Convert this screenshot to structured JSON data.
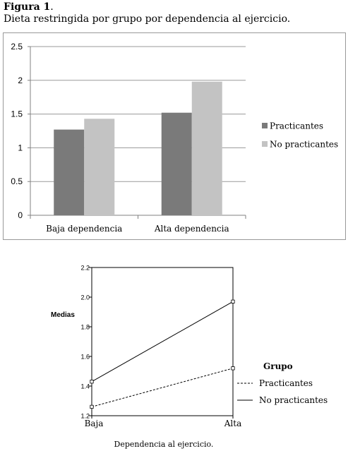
{
  "figure": {
    "label": "Figura 1",
    "caption": "Dieta restringida por grupo por dependencia al ejercicio."
  },
  "colors": {
    "practicantes_bar": "#7a7a7a",
    "no_practicantes_bar": "#c3c3c3",
    "frame": "#999999"
  },
  "chart_data": [
    {
      "type": "bar",
      "categories": [
        "Baja dependencia",
        "Alta dependencia"
      ],
      "series": [
        {
          "name": "Practicantes",
          "values": [
            1.27,
            1.52
          ]
        },
        {
          "name": "No practicantes",
          "values": [
            1.43,
            1.98
          ]
        }
      ],
      "ylim": [
        0,
        2.5
      ],
      "yticks": [
        "0",
        "0.5",
        "1",
        "1.5",
        "2",
        "2.5"
      ],
      "ytick_values": [
        0,
        0.5,
        1,
        1.5,
        2,
        2.5
      ],
      "grid": true,
      "legend": "right"
    },
    {
      "type": "line",
      "x": [
        "Baja",
        "Alta"
      ],
      "series": [
        {
          "name": "Practicantes",
          "values": [
            1.26,
            1.52
          ],
          "style": "dashed"
        },
        {
          "name": "No practicantes",
          "values": [
            1.43,
            1.97
          ],
          "style": "solid"
        }
      ],
      "xlabel": "Dependencia al ejercicio.",
      "ylabel": "Medias",
      "ylim": [
        1.2,
        2.2
      ],
      "yticks": [
        "1.2",
        "1.4",
        "1.6",
        "1.8",
        "2.0",
        "2.2"
      ],
      "ytick_values": [
        1.2,
        1.4,
        1.6,
        1.8,
        2.0,
        2.2
      ],
      "legend_title": "Grupo",
      "grid": false,
      "legend": "right"
    }
  ]
}
